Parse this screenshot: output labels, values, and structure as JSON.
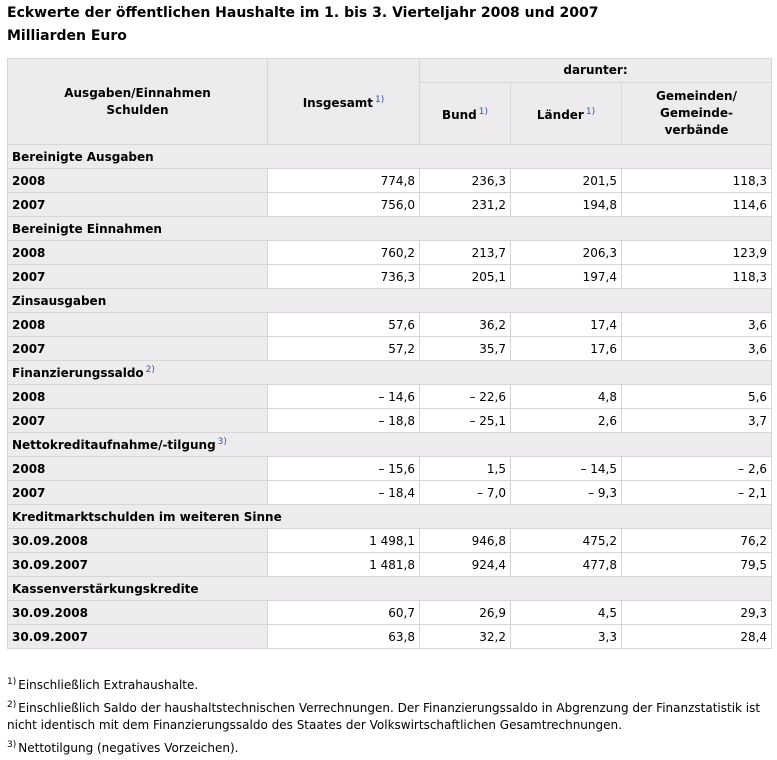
{
  "title": "Eckwerte der öffentlichen Haushalte im 1. bis 3. Vierteljahr 2008 und 2007",
  "subtitle": "Milliarden Euro",
  "header": {
    "col1_line1": "Ausgaben/Einnahmen",
    "col1_line2": "Schulden",
    "insgesamt": "Insgesamt",
    "insgesamt_fn": "1)",
    "darunter": "darunter:",
    "bund": "Bund",
    "bund_fn": "1)",
    "laender": "Länder",
    "laender_fn": "1)",
    "gem_line1": "Gemeinden/",
    "gem_line2": "Gemeinde-",
    "gem_line3": "verbände"
  },
  "sections": [
    {
      "name": "Bereinigte Ausgaben",
      "fn": "",
      "rows": [
        {
          "label": "2008",
          "values": [
            "774,8",
            "236,3",
            "201,5",
            "118,3"
          ]
        },
        {
          "label": "2007",
          "values": [
            "756,0",
            "231,2",
            "194,8",
            "114,6"
          ]
        }
      ]
    },
    {
      "name": "Bereinigte Einnahmen",
      "fn": "",
      "rows": [
        {
          "label": "2008",
          "values": [
            "760,2",
            "213,7",
            "206,3",
            "123,9"
          ]
        },
        {
          "label": "2007",
          "values": [
            "736,3",
            "205,1",
            "197,4",
            "118,3"
          ]
        }
      ]
    },
    {
      "name": "Zinsausgaben",
      "fn": "",
      "rows": [
        {
          "label": "2008",
          "values": [
            "57,6",
            "36,2",
            "17,4",
            "3,6"
          ]
        },
        {
          "label": "2007",
          "values": [
            "57,2",
            "35,7",
            "17,6",
            "3,6"
          ]
        }
      ]
    },
    {
      "name": "Finanzierungssaldo",
      "fn": "2)",
      "rows": [
        {
          "label": "2008",
          "values": [
            "– 14,6",
            "– 22,6",
            "4,8",
            "5,6"
          ]
        },
        {
          "label": "2007",
          "values": [
            "– 18,8",
            "– 25,1",
            "2,6",
            "3,7"
          ]
        }
      ]
    },
    {
      "name": "Nettokreditaufnahme/-tilgung",
      "fn": "3)",
      "rows": [
        {
          "label": "2008",
          "values": [
            "– 15,6",
            "1,5",
            "– 14,5",
            "– 2,6"
          ]
        },
        {
          "label": "2007",
          "values": [
            "– 18,4",
            "– 7,0",
            "– 9,3",
            "– 2,1"
          ]
        }
      ]
    },
    {
      "name": "Kreditmarktschulden im weiteren Sinne",
      "fn": "",
      "rows": [
        {
          "label": "30.09.2008",
          "values": [
            "1 498,1",
            "946,8",
            "475,2",
            "76,2"
          ]
        },
        {
          "label": "30.09.2007",
          "values": [
            "1 481,8",
            "924,4",
            "477,8",
            "79,5"
          ]
        }
      ]
    },
    {
      "name": "Kassenverstärkungskredite",
      "fn": "",
      "rows": [
        {
          "label": "30.09.2008",
          "values": [
            "60,7",
            "26,9",
            "4,5",
            "29,3"
          ]
        },
        {
          "label": "30.09.2007",
          "values": [
            "63,8",
            "32,2",
            "3,3",
            "28,4"
          ]
        }
      ]
    }
  ],
  "footnotes": [
    {
      "mark": "1)",
      "text": "Einschließlich Extrahaushalte."
    },
    {
      "mark": "2)",
      "text": "Einschließlich Saldo der haushaltstechnischen Verrechnungen. Der Finanzierungssaldo in Abgrenzung der Finanzstatistik ist nicht identisch mit dem Finanzierungssaldo des Staates der Volkswirtschaftlichen Gesamtrechnungen."
    },
    {
      "mark": "3)",
      "text": "Nettotilgung (negatives Vorzeichen)."
    }
  ]
}
